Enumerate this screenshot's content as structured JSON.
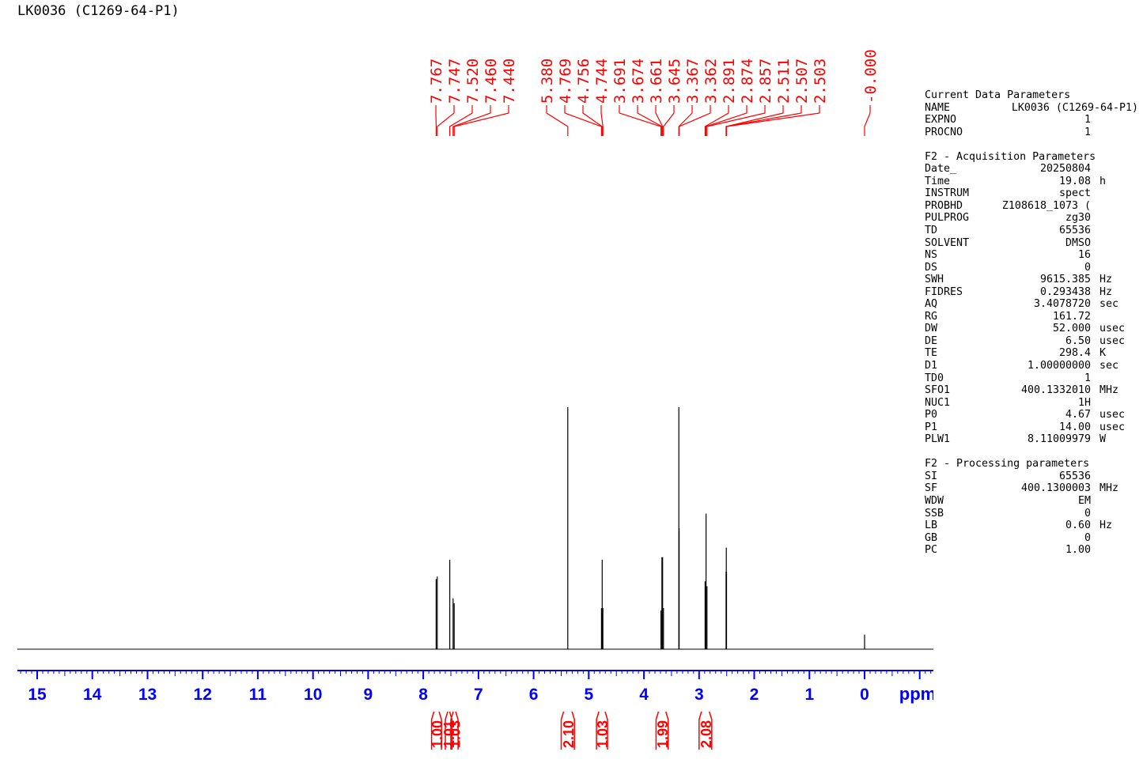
{
  "title": "LK0036 (C1269-64-P1)",
  "params": {
    "current": {
      "title": "Current Data Parameters",
      "rows": [
        {
          "key": "NAME",
          "value": "LK0036 (C1269-64-P1)",
          "unit": ""
        },
        {
          "key": "EXPNO",
          "value": "1",
          "unit": ""
        },
        {
          "key": "PROCNO",
          "value": "1",
          "unit": ""
        }
      ]
    },
    "acquisition": {
      "title": "F2 - Acquisition Parameters",
      "rows": [
        {
          "key": "Date_",
          "value": "20250804",
          "unit": ""
        },
        {
          "key": "Time",
          "value": "19.08",
          "unit": "h"
        },
        {
          "key": "INSTRUM",
          "value": "spect",
          "unit": ""
        },
        {
          "key": "PROBHD",
          "value": "Z108618_1073 (",
          "unit": ""
        },
        {
          "key": "PULPROG",
          "value": "zg30",
          "unit": ""
        },
        {
          "key": "TD",
          "value": "65536",
          "unit": ""
        },
        {
          "key": "SOLVENT",
          "value": "DMSO",
          "unit": ""
        },
        {
          "key": "NS",
          "value": "16",
          "unit": ""
        },
        {
          "key": "DS",
          "value": "0",
          "unit": ""
        },
        {
          "key": "SWH",
          "value": "9615.385",
          "unit": "Hz"
        },
        {
          "key": "FIDRES",
          "value": "0.293438",
          "unit": "Hz"
        },
        {
          "key": "AQ",
          "value": "3.4078720",
          "unit": "sec"
        },
        {
          "key": "RG",
          "value": "161.72",
          "unit": ""
        },
        {
          "key": "DW",
          "value": "52.000",
          "unit": "usec"
        },
        {
          "key": "DE",
          "value": "6.50",
          "unit": "usec"
        },
        {
          "key": "TE",
          "value": "298.4",
          "unit": "K"
        },
        {
          "key": "D1",
          "value": "1.00000000",
          "unit": "sec"
        },
        {
          "key": "TD0",
          "value": "1",
          "unit": ""
        },
        {
          "key": "SFO1",
          "value": "400.1332010",
          "unit": "MHz"
        },
        {
          "key": "NUC1",
          "value": "1H",
          "unit": ""
        },
        {
          "key": "P0",
          "value": "4.67",
          "unit": "usec"
        },
        {
          "key": "P1",
          "value": "14.00",
          "unit": "usec"
        },
        {
          "key": "PLW1",
          "value": "8.11009979",
          "unit": "W"
        }
      ]
    },
    "processing": {
      "title": "F2 - Processing parameters",
      "rows": [
        {
          "key": "SI",
          "value": "65536",
          "unit": ""
        },
        {
          "key": "SF",
          "value": "400.1300003",
          "unit": "MHz"
        },
        {
          "key": "WDW",
          "value": "EM",
          "unit": ""
        },
        {
          "key": "SSB",
          "value": "0",
          "unit": ""
        },
        {
          "key": "LB",
          "value": "0.60",
          "unit": "Hz"
        },
        {
          "key": "GB",
          "value": "0",
          "unit": ""
        },
        {
          "key": "PC",
          "value": "1.00",
          "unit": ""
        }
      ]
    }
  },
  "chart_data": {
    "type": "line",
    "xlabel": "ppm",
    "xlim": [
      15.3,
      -1.3
    ],
    "x_reversed": true,
    "x_ticks": [
      15,
      14,
      13,
      12,
      11,
      10,
      9,
      8,
      7,
      6,
      5,
      4,
      3,
      2,
      1,
      0
    ],
    "ylim": [
      0,
      1
    ],
    "colors": {
      "spectrum": "#000000",
      "peak_labels": "#ff0000",
      "axis": "#0000ff",
      "integrals": "#ff0000"
    },
    "peaks": [
      {
        "ppm": 7.767,
        "height": 0.29
      },
      {
        "ppm": 7.747,
        "height": 0.3
      },
      {
        "ppm": 7.52,
        "height": 0.37
      },
      {
        "ppm": 7.46,
        "height": 0.21
      },
      {
        "ppm": 7.44,
        "height": 0.19
      },
      {
        "ppm": 5.38,
        "height": 1.0
      },
      {
        "ppm": 4.769,
        "height": 0.17
      },
      {
        "ppm": 4.756,
        "height": 0.37
      },
      {
        "ppm": 4.744,
        "height": 0.17
      },
      {
        "ppm": 3.691,
        "height": 0.16
      },
      {
        "ppm": 3.674,
        "height": 0.38
      },
      {
        "ppm": 3.661,
        "height": 0.38
      },
      {
        "ppm": 3.645,
        "height": 0.17
      },
      {
        "ppm": 3.367,
        "height": 1.0
      },
      {
        "ppm": 3.362,
        "height": 0.5
      },
      {
        "ppm": 2.891,
        "height": 0.28
      },
      {
        "ppm": 2.874,
        "height": 0.56
      },
      {
        "ppm": 2.857,
        "height": 0.26
      },
      {
        "ppm": 2.511,
        "height": 0.32
      },
      {
        "ppm": 2.507,
        "height": 0.42
      },
      {
        "ppm": 2.503,
        "height": 0.32
      },
      {
        "ppm": -0.0,
        "height": 0.06
      }
    ],
    "peak_labels": [
      {
        "text": "7.767",
        "ppm": 7.767
      },
      {
        "text": "7.747",
        "ppm": 7.747
      },
      {
        "text": "7.520",
        "ppm": 7.52
      },
      {
        "text": "7.460",
        "ppm": 7.46
      },
      {
        "text": "7.440",
        "ppm": 7.44
      },
      {
        "text": "5.380",
        "ppm": 5.38
      },
      {
        "text": "4.769",
        "ppm": 4.769
      },
      {
        "text": "4.756",
        "ppm": 4.756
      },
      {
        "text": "4.744",
        "ppm": 4.744
      },
      {
        "text": "3.691",
        "ppm": 3.691
      },
      {
        "text": "3.674",
        "ppm": 3.674
      },
      {
        "text": "3.661",
        "ppm": 3.661
      },
      {
        "text": "3.645",
        "ppm": 3.645
      },
      {
        "text": "3.367",
        "ppm": 3.367
      },
      {
        "text": "3.362",
        "ppm": 3.362
      },
      {
        "text": "2.891",
        "ppm": 2.891
      },
      {
        "text": "2.874",
        "ppm": 2.874
      },
      {
        "text": "2.857",
        "ppm": 2.857
      },
      {
        "text": "2.511",
        "ppm": 2.511
      },
      {
        "text": "2.507",
        "ppm": 2.507
      },
      {
        "text": "2.503",
        "ppm": 2.503
      },
      {
        "text": "-0.000",
        "ppm": 0.0
      }
    ],
    "integrals": [
      {
        "value": "1.00",
        "from": 7.85,
        "to": 7.67
      },
      {
        "value": "1.01",
        "from": 7.6,
        "to": 7.48
      },
      {
        "value": "1.03",
        "from": 7.5,
        "to": 7.37
      },
      {
        "value": "2.10",
        "from": 5.5,
        "to": 5.26
      },
      {
        "value": "1.03",
        "from": 4.86,
        "to": 4.66
      },
      {
        "value": "1.99",
        "from": 3.78,
        "to": 3.56
      },
      {
        "value": "2.08",
        "from": 3.0,
        "to": 2.77
      }
    ]
  }
}
